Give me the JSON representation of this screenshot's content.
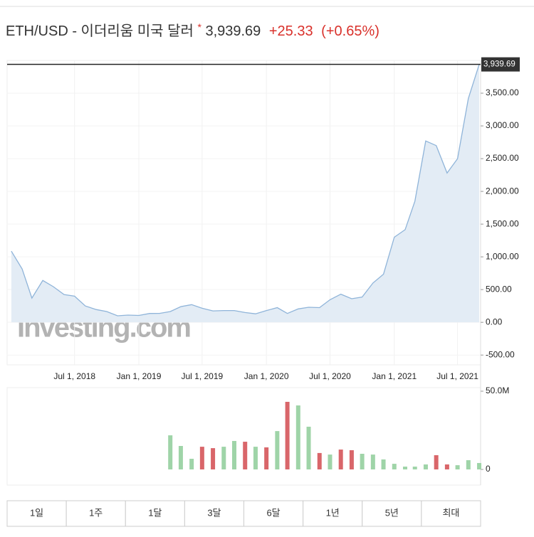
{
  "header": {
    "symbol": "ETH/USD - 이더리움 미국 달러",
    "marker": "*",
    "price": "3,939.69",
    "change": "+25.33",
    "change_pct": "(+0.65%)"
  },
  "chart_data": [
    {
      "type": "area",
      "watermark": "Investing.com",
      "color": "#8fb4d9",
      "fill": "#e3ecf5",
      "last_color": "#222",
      "x": [
        "2018-01-01",
        "2018-02-01",
        "2018-03-01",
        "2018-04-01",
        "2018-05-01",
        "2018-06-01",
        "2018-07-01",
        "2018-08-01",
        "2018-09-01",
        "2018-10-01",
        "2018-11-01",
        "2018-12-01",
        "2019-01-01",
        "2019-02-01",
        "2019-03-01",
        "2019-04-01",
        "2019-05-01",
        "2019-06-01",
        "2019-07-01",
        "2019-08-01",
        "2019-09-01",
        "2019-10-01",
        "2019-11-01",
        "2019-12-01",
        "2020-01-01",
        "2020-02-01",
        "2020-03-01",
        "2020-04-01",
        "2020-05-01",
        "2020-06-01",
        "2020-07-01",
        "2020-08-01",
        "2020-09-01",
        "2020-10-01",
        "2020-11-01",
        "2020-12-01",
        "2021-01-01",
        "2021-02-01",
        "2021-03-01",
        "2021-04-01",
        "2021-05-01",
        "2021-06-01",
        "2021-07-01",
        "2021-08-01",
        "2021-09-01"
      ],
      "values": [
        1087,
        815,
        370,
        640,
        545,
        425,
        400,
        250,
        195,
        165,
        100,
        110,
        105,
        135,
        137,
        165,
        240,
        270,
        215,
        175,
        180,
        180,
        150,
        130,
        180,
        225,
        135,
        205,
        230,
        225,
        345,
        430,
        360,
        385,
        600,
        735,
        1300,
        1415,
        1850,
        2770,
        2700,
        2280,
        2500,
        3420,
        3939.69
      ],
      "last_label": "3,939.69",
      "xlim": [
        "2017-12-20",
        "2021-09-05"
      ],
      "xticks": [
        {
          "value": "2018-07-01",
          "label": "Jul 1, 2018"
        },
        {
          "value": "2019-01-01",
          "label": "Jan 1, 2019"
        },
        {
          "value": "2019-07-01",
          "label": "Jul 1, 2019"
        },
        {
          "value": "2020-01-01",
          "label": "Jan 1, 2020"
        },
        {
          "value": "2020-07-01",
          "label": "Jul 1, 2020"
        },
        {
          "value": "2021-01-01",
          "label": "Jan 1, 2021"
        },
        {
          "value": "2021-07-01",
          "label": "Jul 1, 2021"
        }
      ],
      "ylim": [
        -650,
        4000
      ],
      "yticks": [
        {
          "value": 3500,
          "label": "3,500.00"
        },
        {
          "value": 3000,
          "label": "3,000.00"
        },
        {
          "value": 2500,
          "label": "2,500.00"
        },
        {
          "value": 2000,
          "label": "2,000.00"
        },
        {
          "value": 1500,
          "label": "1,500.00"
        },
        {
          "value": 1000,
          "label": "1,000.00"
        },
        {
          "value": 500,
          "label": "500.00"
        },
        {
          "value": 0,
          "label": "0.00"
        },
        {
          "value": -500,
          "label": "-500.00"
        }
      ],
      "grid": true
    },
    {
      "type": "bar",
      "x": [
        "2019-04-01",
        "2019-05-01",
        "2019-06-01",
        "2019-07-01",
        "2019-08-01",
        "2019-09-01",
        "2019-10-01",
        "2019-11-01",
        "2019-12-01",
        "2020-01-01",
        "2020-02-01",
        "2020-03-01",
        "2020-04-01",
        "2020-05-01",
        "2020-06-01",
        "2020-07-01",
        "2020-08-01",
        "2020-09-01",
        "2020-10-01",
        "2020-11-01",
        "2020-12-01",
        "2021-01-01",
        "2021-02-01",
        "2021-03-01",
        "2021-04-01",
        "2021-05-01",
        "2021-06-01",
        "2021-07-01",
        "2021-08-01",
        "2021-09-01"
      ],
      "values": [
        21800000,
        15000000,
        6800000,
        14500000,
        13600000,
        14500000,
        18200000,
        17700000,
        14500000,
        14100000,
        24500000,
        43200000,
        40900000,
        27300000,
        10500000,
        9500000,
        12700000,
        12300000,
        10000000,
        9500000,
        6400000,
        3600000,
        1800000,
        1800000,
        3200000,
        9100000,
        3200000,
        2700000,
        5900000,
        4100000
      ],
      "colors": [
        "#9fd4a8",
        "#9fd4a8",
        "#9fd4a8",
        "#d9666a",
        "#d9666a",
        "#9fd4a8",
        "#9fd4a8",
        "#d9666a",
        "#9fd4a8",
        "#d9666a",
        "#9fd4a8",
        "#d9666a",
        "#9fd4a8",
        "#9fd4a8",
        "#d9666a",
        "#9fd4a8",
        "#d9666a",
        "#d9666a",
        "#9fd4a8",
        "#9fd4a8",
        "#9fd4a8",
        "#9fd4a8",
        "#9fd4a8",
        "#9fd4a8",
        "#9fd4a8",
        "#d9666a",
        "#d9666a",
        "#9fd4a8",
        "#9fd4a8",
        "#9fd4a8"
      ],
      "ylim": [
        0,
        50000000
      ],
      "yticks": [
        {
          "value": 50000000,
          "label": "50.0M"
        },
        0
      ]
    }
  ],
  "buttons": [
    "1일",
    "1주",
    "1달",
    "3달",
    "6달",
    "1년",
    "5년",
    "최대"
  ]
}
